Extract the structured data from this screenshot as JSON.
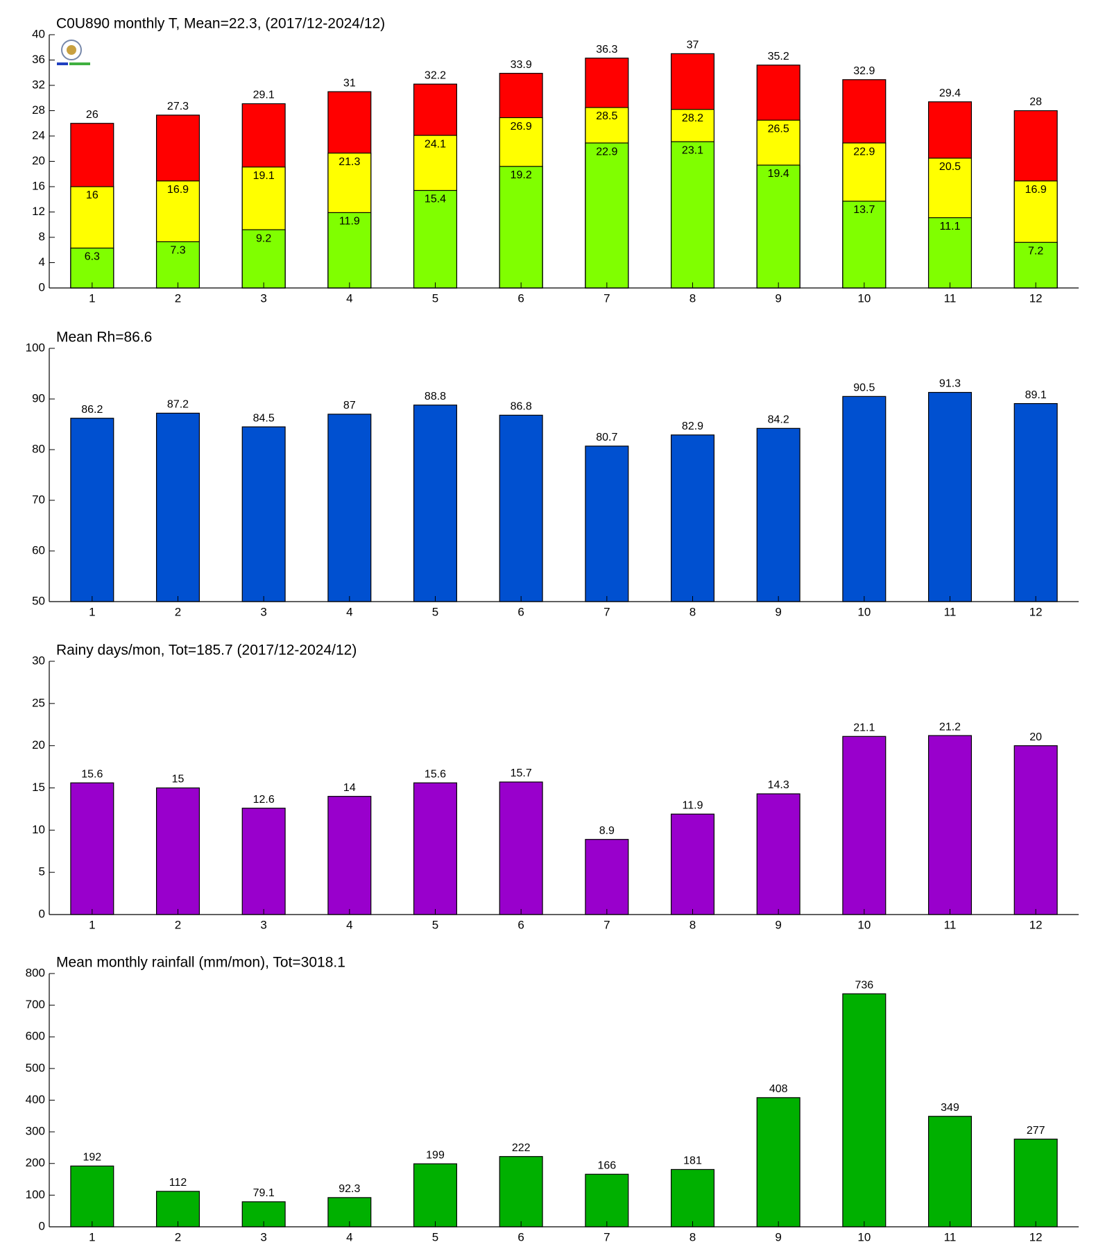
{
  "chart_data": [
    {
      "type": "bar",
      "barmode": "overlay",
      "title": "C0U890 monthly T, Mean=22.3, (2017/12-2024/12)",
      "categories": [
        1,
        2,
        3,
        4,
        5,
        6,
        7,
        8,
        9,
        10,
        11,
        12
      ],
      "series": [
        {
          "color": "#ff0000",
          "values": [
            26,
            27.3,
            29.1,
            31,
            32.2,
            33.9,
            36.3,
            37,
            35.2,
            32.9,
            29.4,
            28
          ]
        },
        {
          "color": "#ffff00",
          "values": [
            16,
            16.9,
            19.1,
            21.3,
            24.1,
            26.9,
            28.5,
            28.2,
            26.5,
            22.9,
            20.5,
            16.9
          ]
        },
        {
          "color": "#80ff00",
          "values": [
            6.3,
            7.3,
            9.2,
            11.9,
            15.4,
            19.2,
            22.9,
            23.1,
            19.4,
            13.7,
            11.1,
            7.2
          ]
        }
      ],
      "ylim": [
        0,
        40
      ],
      "yticks": [
        0,
        4,
        8,
        12,
        16,
        20,
        24,
        28,
        32,
        36,
        40
      ]
    },
    {
      "type": "bar",
      "title": "Mean Rh=86.6",
      "categories": [
        1,
        2,
        3,
        4,
        5,
        6,
        7,
        8,
        9,
        10,
        11,
        12
      ],
      "series": [
        {
          "color": "#0050d0",
          "values": [
            86.2,
            87.2,
            84.5,
            87,
            88.8,
            86.8,
            80.7,
            82.9,
            84.2,
            90.5,
            91.3,
            89.1
          ]
        }
      ],
      "ylim": [
        50,
        100
      ],
      "yticks": [
        50,
        60,
        70,
        80,
        90,
        100
      ]
    },
    {
      "type": "bar",
      "title": "Rainy days/mon, Tot=185.7 (2017/12-2024/12)",
      "categories": [
        1,
        2,
        3,
        4,
        5,
        6,
        7,
        8,
        9,
        10,
        11,
        12
      ],
      "series": [
        {
          "color": "#9900cc",
          "values": [
            15.6,
            15,
            12.6,
            14,
            15.6,
            15.7,
            8.9,
            11.9,
            14.3,
            21.1,
            21.2,
            20
          ]
        }
      ],
      "ylim": [
        0,
        30
      ],
      "yticks": [
        0,
        5,
        10,
        15,
        20,
        25,
        30
      ]
    },
    {
      "type": "bar",
      "title": "Mean monthly rainfall (mm/mon), Tot=3018.1",
      "categories": [
        1,
        2,
        3,
        4,
        5,
        6,
        7,
        8,
        9,
        10,
        11,
        12
      ],
      "series": [
        {
          "color": "#00b000",
          "values": [
            192,
            112,
            79.1,
            92.3,
            199,
            222,
            166,
            181,
            408,
            736,
            349,
            277
          ]
        }
      ],
      "ylim": [
        0,
        800
      ],
      "yticks": [
        0,
        100,
        200,
        300,
        400,
        500,
        600,
        700,
        800
      ]
    }
  ]
}
